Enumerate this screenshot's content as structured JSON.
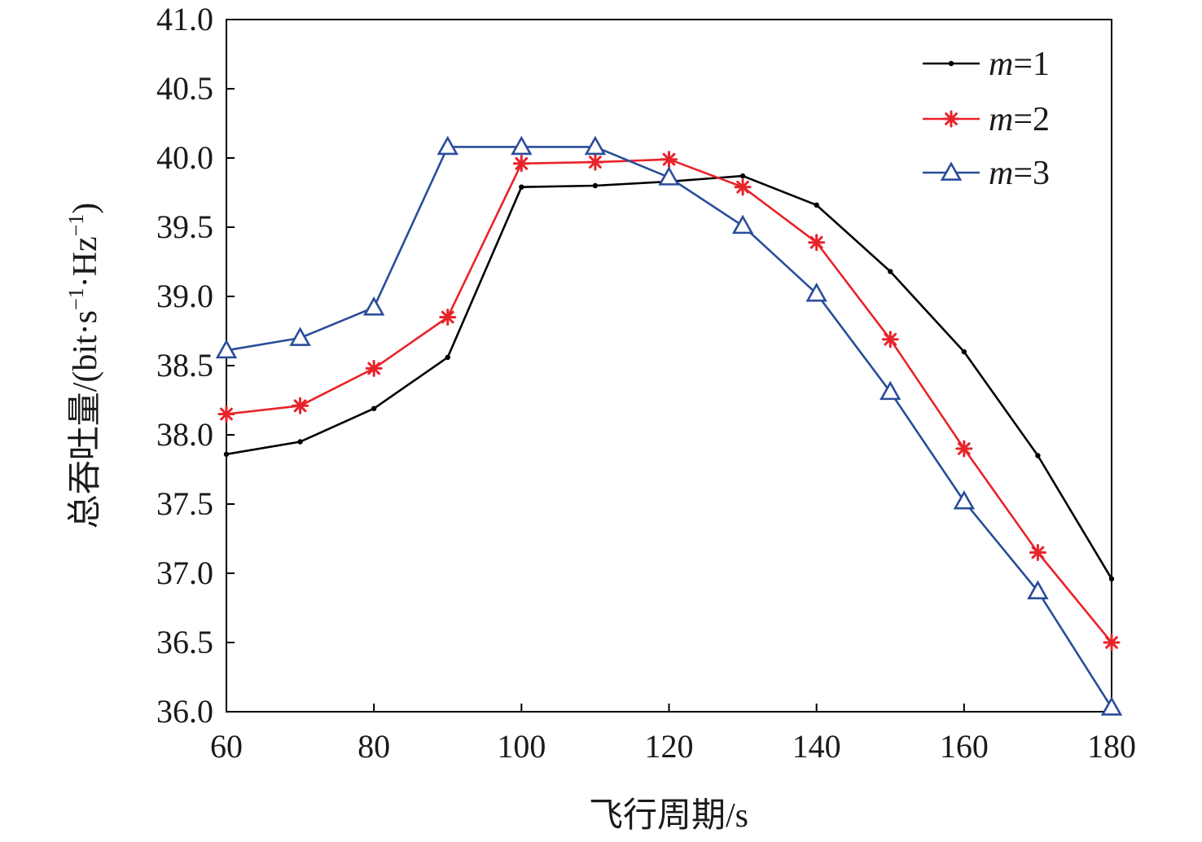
{
  "chart_data": {
    "type": "line",
    "title": "",
    "xlabel": "飞行周期/s",
    "ylabel": {
      "base": "总吞吐量/(bit·s",
      "sup1": "−1",
      "mid": "·Hz",
      "sup2": "−1",
      "end": ")"
    },
    "xlim": [
      60,
      180
    ],
    "ylim": [
      36.0,
      41.0
    ],
    "x_ticks": [
      "60",
      "80",
      "100",
      "120",
      "140",
      "160",
      "180"
    ],
    "x_tick_values": [
      60,
      80,
      100,
      120,
      140,
      160,
      180
    ],
    "y_ticks": [
      "36.0",
      "36.5",
      "37.0",
      "37.5",
      "38.0",
      "38.5",
      "39.0",
      "39.5",
      "40.0",
      "40.5",
      "41.0"
    ],
    "y_tick_values": [
      36.0,
      36.5,
      37.0,
      37.5,
      38.0,
      38.5,
      39.0,
      39.5,
      40.0,
      40.5,
      41.0
    ],
    "grid": false,
    "legend_position": "top-right",
    "x": [
      60,
      70,
      80,
      90,
      100,
      110,
      120,
      130,
      140,
      150,
      160,
      170,
      180
    ],
    "series": [
      {
        "name_var": "m",
        "name_eq": "=1",
        "color": "#000000",
        "marker": "dot",
        "values": [
          37.86,
          37.95,
          38.19,
          38.56,
          39.79,
          39.8,
          39.83,
          39.87,
          39.66,
          39.18,
          38.6,
          37.85,
          36.96
        ]
      },
      {
        "name_var": "m",
        "name_eq": "=2",
        "color": "#e8232a",
        "marker": "asterisk",
        "values": [
          38.15,
          38.21,
          38.48,
          38.85,
          39.96,
          39.97,
          39.99,
          39.79,
          39.39,
          38.69,
          37.9,
          37.15,
          36.5
        ]
      },
      {
        "name_var": "m",
        "name_eq": "=3",
        "color": "#2a4d9a",
        "marker": "triangle",
        "values": [
          38.61,
          38.7,
          38.92,
          40.08,
          40.08,
          40.08,
          39.86,
          39.51,
          39.02,
          38.31,
          37.52,
          36.87,
          36.03
        ]
      }
    ]
  }
}
